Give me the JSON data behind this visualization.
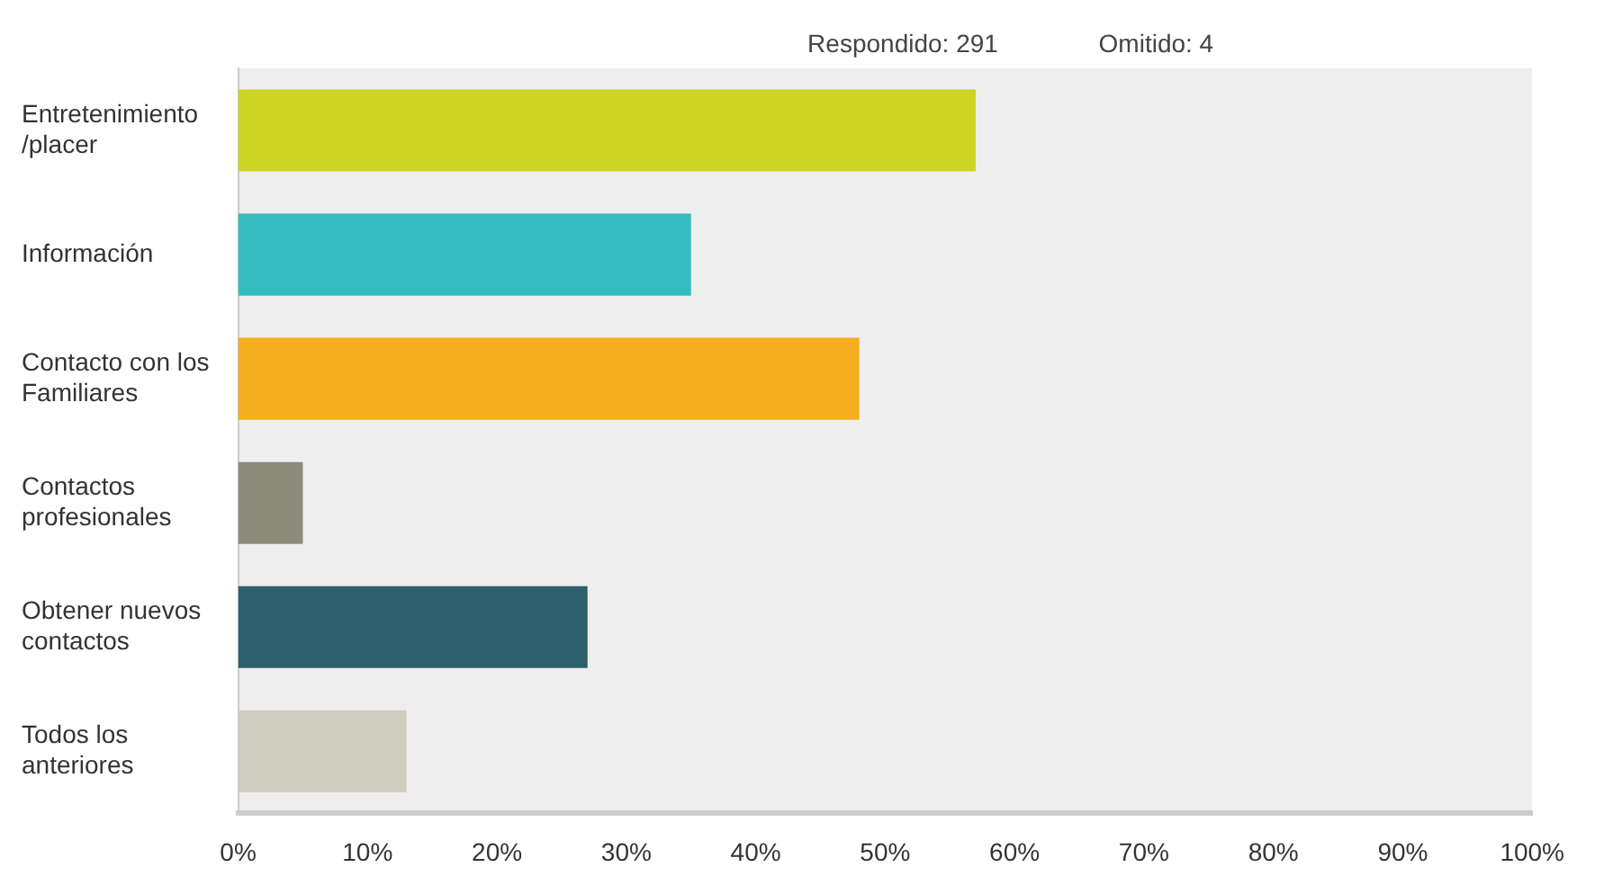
{
  "chart_data": {
    "type": "bar",
    "orientation": "horizontal",
    "categories": [
      "Entretenimiento /placer",
      "Información",
      "Contacto con los Familiares",
      "Contactos profesionales",
      "Obtener nuevos contactos",
      "Todos los anteriores"
    ],
    "values": [
      57,
      35,
      48,
      5,
      27,
      13
    ],
    "colors": [
      "#ced424",
      "#33bdbe",
      "#f6ae1f",
      "#8b8c7b",
      "#2e5f6c",
      "#cfcdc0"
    ],
    "xlim": [
      0,
      100
    ],
    "xticks": [
      {
        "value": 0,
        "label": "0%"
      },
      {
        "value": 10,
        "label": "10%"
      },
      {
        "value": 20,
        "label": "20%"
      },
      {
        "value": 30,
        "label": "30%"
      },
      {
        "value": 40,
        "label": "40%"
      },
      {
        "value": 50,
        "label": "50%"
      },
      {
        "value": 60,
        "label": "60%"
      },
      {
        "value": 70,
        "label": "70%"
      },
      {
        "value": 80,
        "label": "80%"
      },
      {
        "value": 90,
        "label": "90%"
      },
      {
        "value": 100,
        "label": "100%"
      }
    ],
    "annotations": [
      "Respondido: 291",
      "Omitido: 4"
    ],
    "grid": false,
    "legend": false
  }
}
